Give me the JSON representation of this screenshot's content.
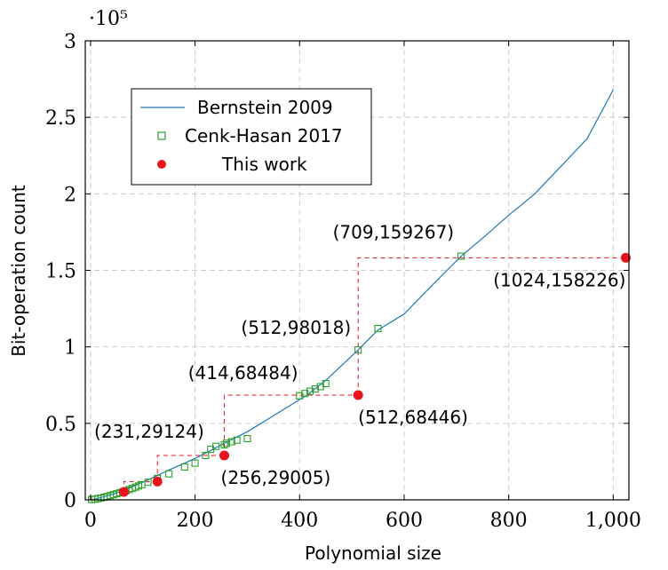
{
  "chart_data": {
    "type": "line",
    "title": "",
    "xlabel": "Polynomial size",
    "ylabel": "Bit-operation count",
    "y_multiplier_label": "·10⁵",
    "xlim": [
      -10,
      1030
    ],
    "ylim": [
      0,
      300000
    ],
    "x_ticks": [
      0,
      200,
      400,
      600,
      800,
      1000
    ],
    "x_tick_labels": [
      "0",
      "200",
      "400",
      "600",
      "800",
      "1,000"
    ],
    "y_ticks": [
      0,
      50000,
      100000,
      150000,
      200000,
      250000,
      300000
    ],
    "y_tick_labels": [
      "0",
      "0.5",
      "1",
      "1.5",
      "2",
      "2.5",
      "3"
    ],
    "grid": true,
    "legend_position": "top-left",
    "series": [
      {
        "name": "Bernstein 2009",
        "kind": "line",
        "color": "#1f77b4",
        "x": [
          2,
          20,
          50,
          80,
          110,
          150,
          200,
          256,
          300,
          350,
          414,
          450,
          512,
          550,
          600,
          650,
          709,
          750,
          800,
          850,
          900,
          950,
          1000
        ],
        "y": [
          50,
          1500,
          4500,
          8500,
          13000,
          19500,
          27000,
          37000,
          44500,
          55000,
          68484,
          78000,
          98018,
          111000,
          121500,
          139000,
          159267,
          171000,
          186000,
          200000,
          218000,
          236000,
          268000
        ]
      },
      {
        "name": "Cenk-Hasan 2017",
        "kind": "scatter",
        "marker": "square",
        "color": "#2ca02c",
        "x": [
          2,
          8,
          14,
          20,
          26,
          32,
          38,
          44,
          50,
          56,
          62,
          68,
          74,
          80,
          86,
          92,
          98,
          110,
          128,
          150,
          180,
          200,
          220,
          230,
          240,
          256,
          260,
          270,
          280,
          300,
          400,
          410,
          420,
          430,
          440,
          450,
          512,
          550,
          709
        ],
        "y": [
          200,
          400,
          800,
          1200,
          1700,
          2200,
          2800,
          3400,
          4000,
          4600,
          5300,
          6000,
          6700,
          7500,
          8300,
          9100,
          9900,
          11500,
          14000,
          17000,
          21500,
          24000,
          29000,
          33000,
          35000,
          36000,
          37000,
          38000,
          39000,
          40000,
          68000,
          69500,
          71000,
          72500,
          74000,
          76000,
          98018,
          112000,
          159267
        ]
      },
      {
        "name": "This work",
        "kind": "scatter",
        "marker": "circle",
        "color": "#e8141c",
        "x": [
          64,
          128,
          256,
          512,
          1024
        ],
        "y": [
          5200,
          12000,
          29005,
          68446,
          158226
        ]
      }
    ],
    "steps": [
      [
        64,
        5200
      ],
      [
        128,
        12000
      ],
      [
        256,
        29005
      ],
      [
        512,
        68446
      ],
      [
        1024,
        158226
      ]
    ],
    "annotations": [
      {
        "text": "(709,159267)",
        "x": 709,
        "y": 159267
      },
      {
        "text": "(1024,158226)",
        "x": 1024,
        "y": 158226
      },
      {
        "text": "(512,98018)",
        "x": 512,
        "y": 98018
      },
      {
        "text": "(414,68484)",
        "x": 414,
        "y": 68484
      },
      {
        "text": "(512,68446)",
        "x": 512,
        "y": 68446
      },
      {
        "text": "(231,29124)",
        "x": 231,
        "y": 29124
      },
      {
        "text": "(256,29005)",
        "x": 256,
        "y": 29005
      }
    ]
  }
}
